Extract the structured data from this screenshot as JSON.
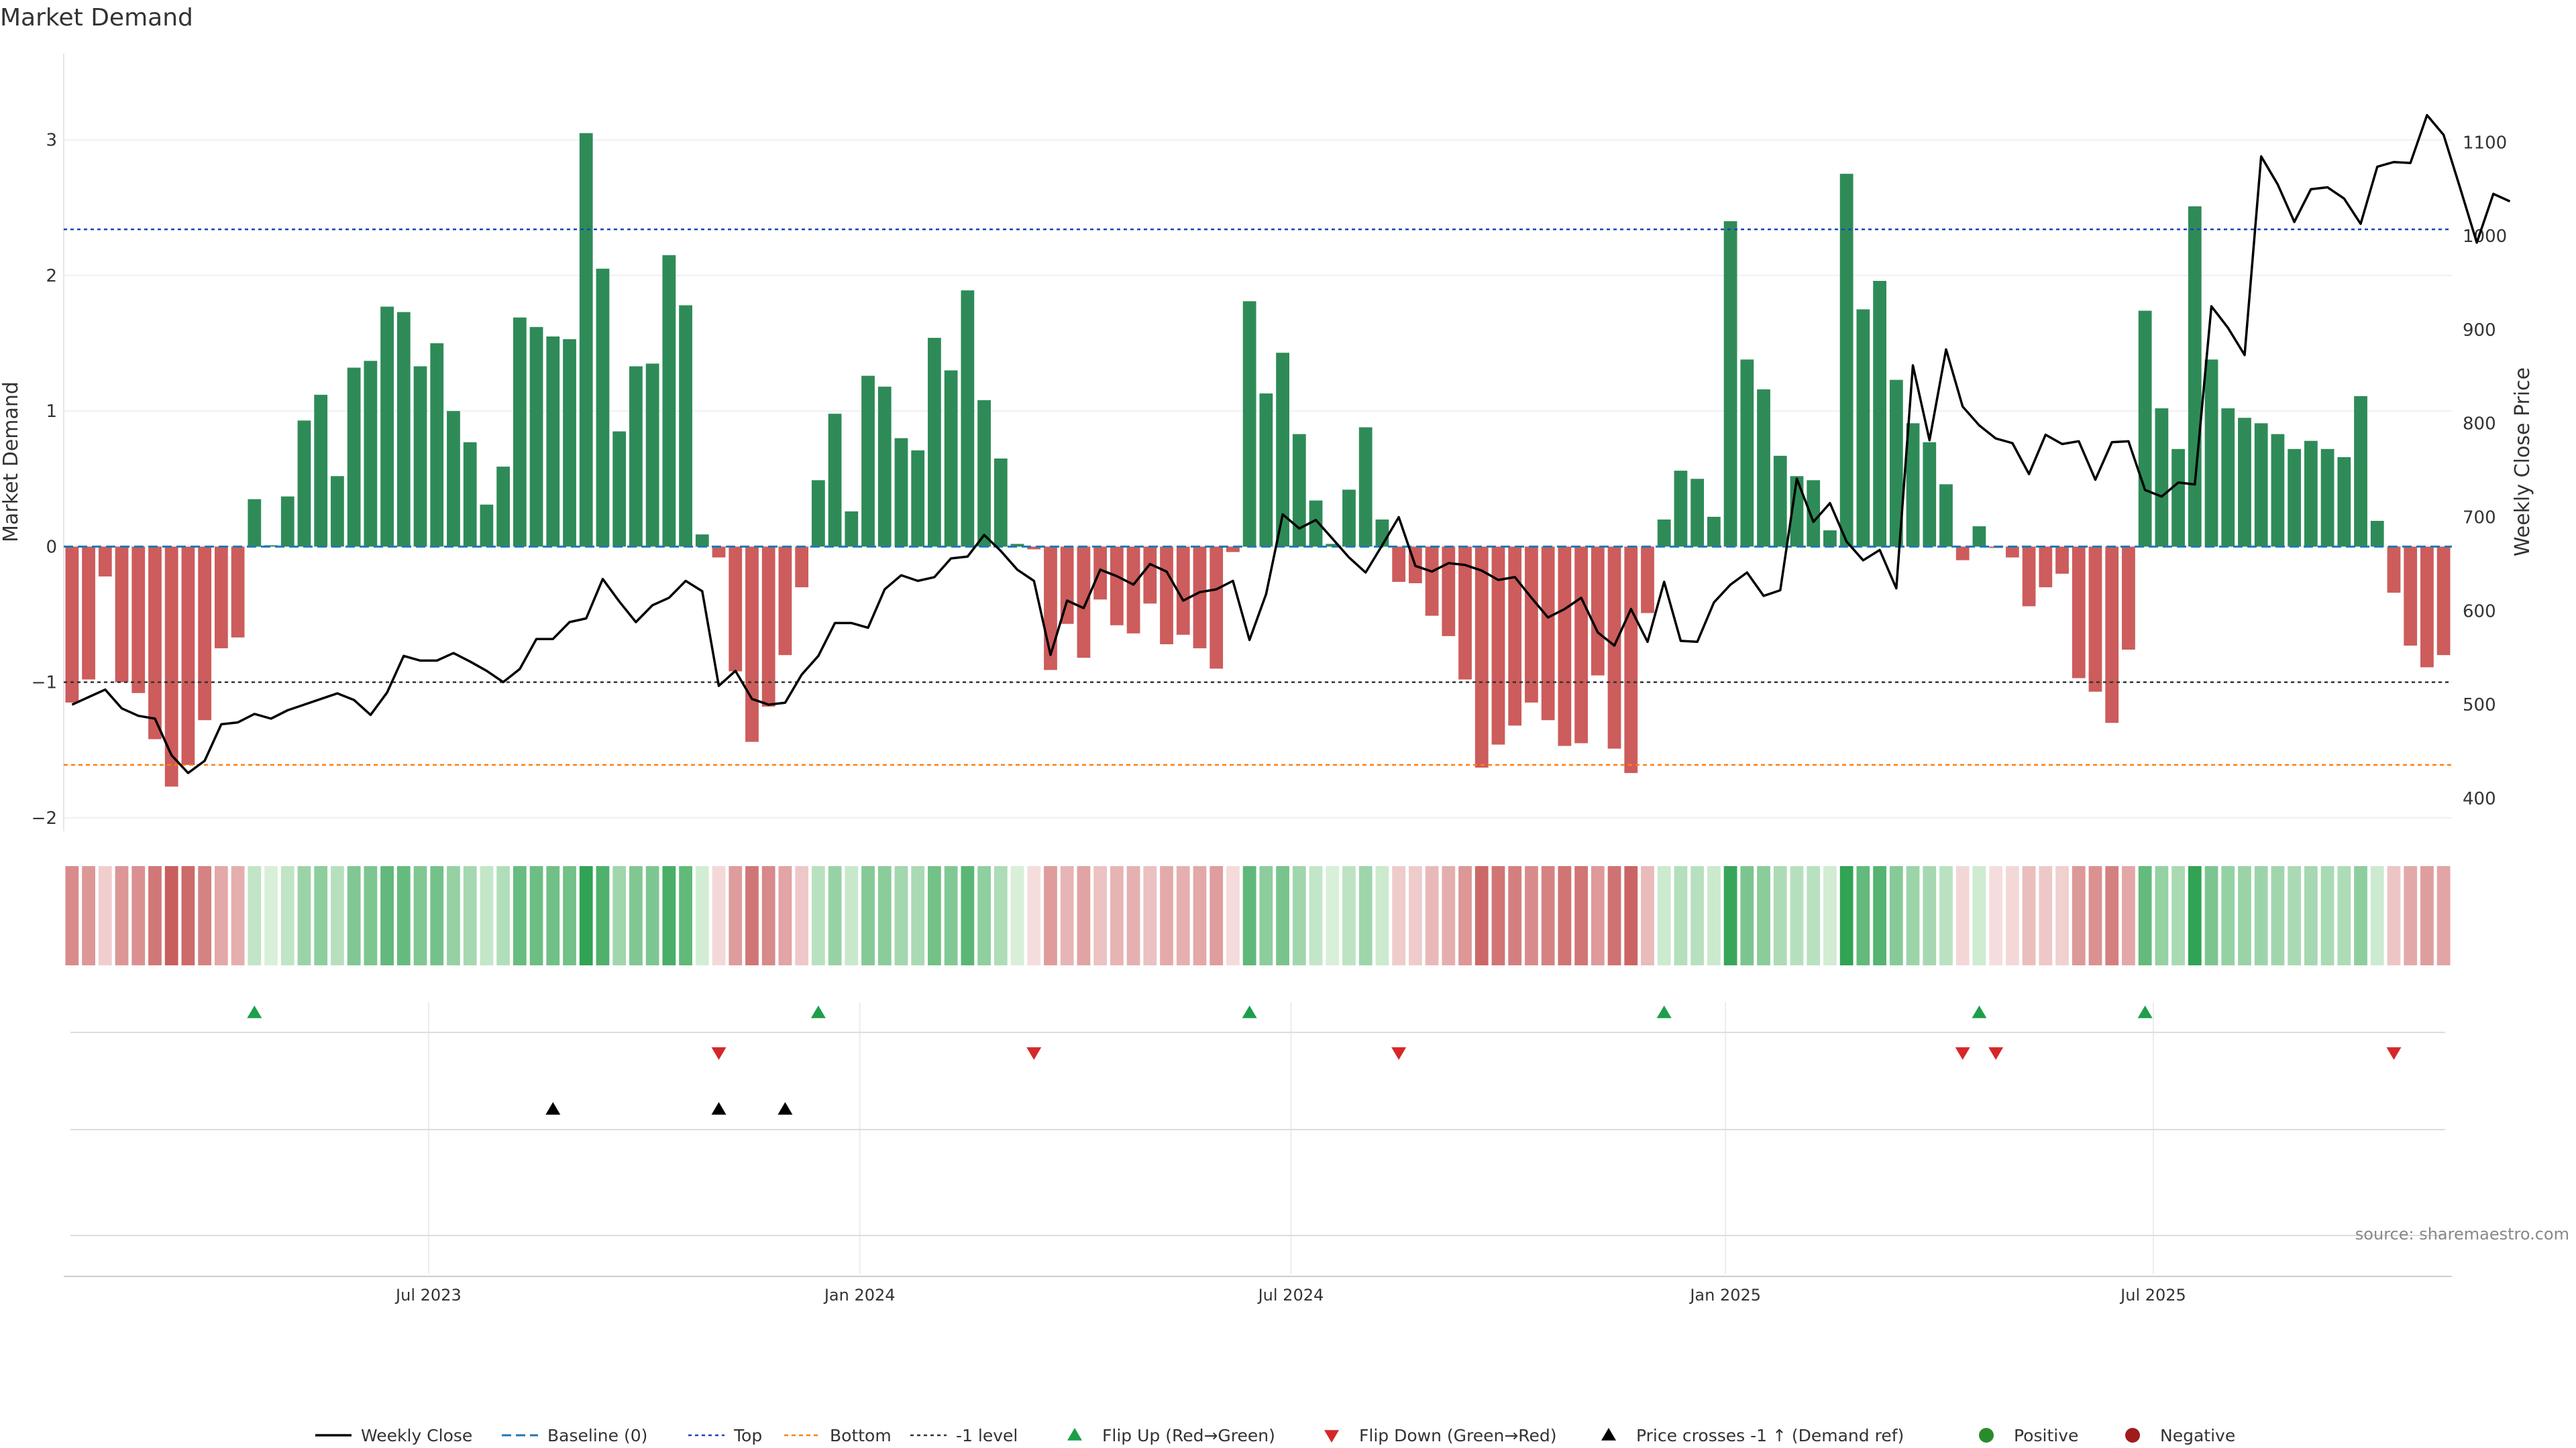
{
  "chart_data": {
    "type": "bar",
    "title": "Market Demand",
    "ylabel": "Market Demand",
    "y2label": "Weekly Close Price",
    "ylim": [
      -2.05,
      3.3
    ],
    "y2lim": [
      372,
      1146
    ],
    "yticks": [
      -2,
      -1,
      0,
      1,
      2,
      3
    ],
    "y2ticks": [
      400,
      500,
      600,
      700,
      800,
      900,
      1000,
      1100
    ],
    "num_weeks": 144,
    "x_ticks": [
      {
        "label": "Jul 2023",
        "week": 22
      },
      {
        "label": "Jan 2024",
        "week": 48
      },
      {
        "label": "Jul 2024",
        "week": 74
      },
      {
        "label": "Jan 2025",
        "week": 100.2
      },
      {
        "label": "Jul 2025",
        "week": 126
      }
    ],
    "reference_lines": {
      "top": 2.34,
      "bottom": -1.61,
      "minus_one": -1,
      "baseline": 0
    },
    "demand": [
      -1.15,
      -0.98,
      -0.22,
      -1,
      -1.08,
      -1.42,
      -1.77,
      -1.61,
      -1.28,
      -0.75,
      -0.67,
      0.35,
      0.01,
      0.37,
      0.93,
      1.12,
      0.52,
      1.32,
      1.37,
      1.77,
      1.73,
      1.33,
      1.5,
      1,
      0.77,
      0.31,
      0.59,
      1.69,
      1.62,
      1.55,
      1.53,
      3.05,
      2.05,
      0.85,
      1.33,
      1.35,
      2.15,
      1.78,
      0.09,
      -0.08,
      -0.92,
      -1.44,
      -1.18,
      -0.8,
      -0.3,
      0.49,
      0.98,
      0.26,
      1.26,
      1.18,
      0.8,
      0.71,
      1.54,
      1.3,
      1.89,
      1.08,
      0.65,
      0.02,
      -0.02,
      -0.91,
      -0.57,
      -0.82,
      -0.39,
      -0.58,
      -0.64,
      -0.42,
      -0.72,
      -0.65,
      -0.75,
      -0.9,
      -0.04,
      1.81,
      1.13,
      1.43,
      0.83,
      0.34,
      0.02,
      0.42,
      0.88,
      0.2,
      -0.26,
      -0.27,
      -0.51,
      -0.66,
      -0.98,
      -1.63,
      -1.46,
      -1.32,
      -1.15,
      -1.28,
      -1.47,
      -1.45,
      -0.95,
      -1.49,
      -1.67,
      -0.49,
      0.2,
      0.56,
      0.5,
      0.22,
      2.4,
      1.38,
      1.16,
      0.67,
      0.52,
      0.49,
      0.12,
      2.75,
      1.75,
      1.96,
      1.23,
      0.91,
      0.77,
      0.46,
      -0.1,
      0.15,
      -0.01,
      -0.08,
      -0.44,
      -0.3,
      -0.2,
      -0.97,
      -1.07,
      -1.3,
      -0.76,
      1.74,
      1.02,
      0.72,
      2.51,
      1.38,
      1.02,
      0.95,
      0.91,
      0.83,
      0.72,
      0.78,
      0.72,
      0.66,
      1.11,
      0.19,
      -0.34,
      -0.73,
      -0.89,
      -0.8
    ],
    "price": [
      500,
      508,
      516,
      496,
      488,
      485,
      446,
      427,
      440,
      479,
      481,
      490,
      485,
      494,
      500,
      506,
      512,
      505,
      489,
      513,
      552,
      547,
      547,
      555,
      546,
      536,
      524,
      538,
      570,
      570,
      588,
      592,
      634,
      610,
      588,
      606,
      614,
      632,
      621,
      520,
      536,
      506,
      500,
      502,
      532,
      552,
      587,
      587,
      582,
      623,
      638,
      632,
      636,
      656,
      658,
      681,
      664,
      644,
      632,
      553,
      611,
      603,
      644,
      637,
      628,
      650,
      642,
      611,
      620,
      623,
      632,
      569,
      618,
      703,
      688,
      697,
      677,
      657,
      641,
      670,
      700,
      648,
      642,
      651,
      649,
      643,
      633,
      636,
      614,
      593,
      602,
      614,
      577,
      563,
      602,
      567,
      631,
      568,
      567,
      609,
      628,
      641,
      616,
      622,
      741,
      695,
      715,
      674,
      654,
      665,
      624,
      862,
      782,
      879,
      818,
      798,
      784,
      779,
      746,
      788,
      778,
      781,
      740,
      780,
      781,
      729,
      722,
      737,
      735,
      925,
      902,
      873,
      1085,
      1055,
      1015,
      1050,
      1052,
      1040,
      1013,
      1074,
      1079,
      1078,
      1129,
      1108,
      1051,
      993,
      1045,
      1037
    ],
    "flip_up": [
      11,
      45,
      71,
      96,
      115,
      125
    ],
    "flip_down": [
      39,
      58,
      80,
      114,
      116,
      140
    ],
    "price_cross": [
      29,
      39,
      43
    ],
    "legend": [
      "Weekly Close",
      "Baseline (0)",
      "Top",
      "Bottom",
      "-1 level",
      "Flip Up (Red→Green)",
      "Flip Down (Green→Red)",
      "Price crosses -1 ↑ (Demand ref)",
      "Positive",
      "Negative"
    ],
    "source": "source: sharemaestro.com"
  },
  "colors": {
    "positive": "#2e8b57",
    "negative": "#cd5c5c",
    "price": "#000000",
    "baseline": "#1f77b4",
    "top": "#1f3fbf",
    "bottom": "#ff7f0e",
    "minus_one": "#333333",
    "flip_up": "#1e9e4a",
    "flip_down": "#d62728",
    "cross": "#000000",
    "legend_positive": "#2a8b2a",
    "legend_negative": "#a01c1c",
    "heat_pos_dark": "#31a354",
    "heat_pos_light": "#d9f0d9",
    "heat_neg_dark": "#c85c5c",
    "heat_neg_light": "#f6dede"
  }
}
